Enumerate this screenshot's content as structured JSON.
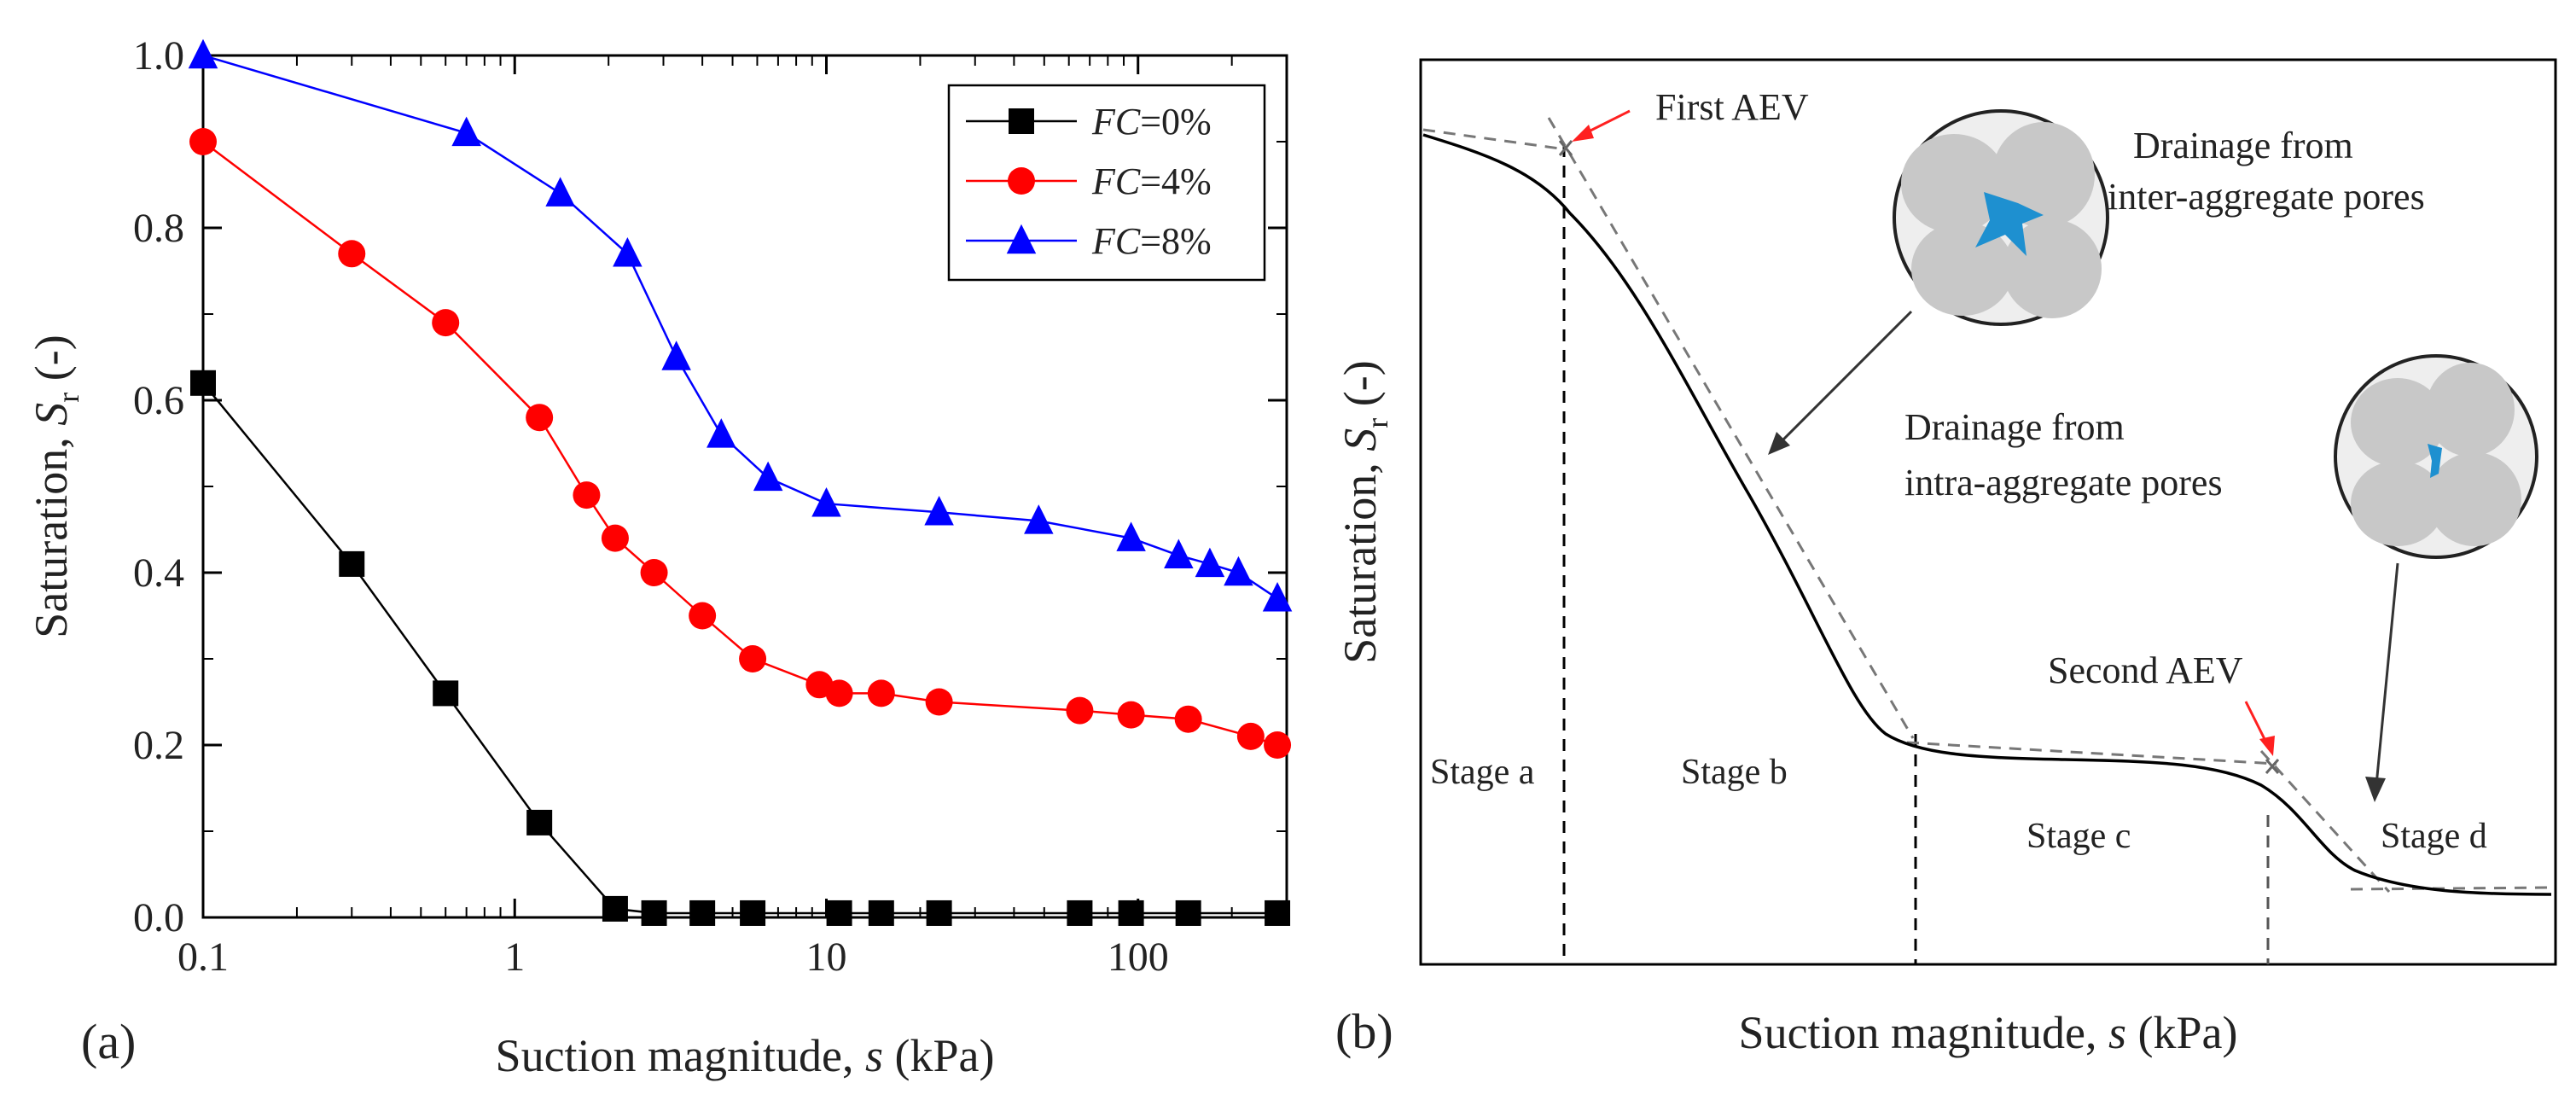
{
  "chart_data": [
    {
      "panel_label": "(a)",
      "type": "line",
      "xscale": "log",
      "xlim": [
        0.1,
        300
      ],
      "ylim": [
        0.0,
        1.0
      ],
      "xlabel_prefix": "Suction magnitude, ",
      "xlabel_var": "s",
      "xlabel_suffix": " (kPa)",
      "ylabel_prefix": "Saturation, ",
      "ylabel_var": "S",
      "ylabel_sub": "r",
      "ylabel_suffix": " (-)",
      "x_ticks": [
        0.1,
        1,
        10,
        100
      ],
      "x_tick_labels": [
        "0.1",
        "1",
        "10",
        "100"
      ],
      "y_ticks": [
        0.0,
        0.2,
        0.4,
        0.6,
        0.8,
        1.0
      ],
      "y_tick_labels": [
        "0.0",
        "0.2",
        "0.4",
        "0.6",
        "0.8",
        "1.0"
      ],
      "legend_position": "top-right",
      "series": [
        {
          "name": "FC=0%",
          "legend_var": "FC",
          "legend_val": "=0%",
          "color": "#000000",
          "marker": "square",
          "x": [
            0.1,
            0.3,
            0.6,
            1.2,
            2.1,
            2.8,
            4.0,
            5.8,
            11,
            15,
            23,
            65,
            95,
            145,
            280
          ],
          "y": [
            0.62,
            0.41,
            0.26,
            0.11,
            0.01,
            0.005,
            0.005,
            0.005,
            0.005,
            0.005,
            0.005,
            0.005,
            0.005,
            0.005,
            0.005
          ]
        },
        {
          "name": "FC=4%",
          "legend_var": "FC",
          "legend_val": "=4%",
          "color": "#ff0000",
          "marker": "circle",
          "x": [
            0.1,
            0.3,
            0.6,
            1.2,
            1.7,
            2.1,
            2.8,
            4.0,
            5.8,
            9.5,
            11,
            15,
            23,
            65,
            95,
            145,
            230,
            280
          ],
          "y": [
            0.9,
            0.77,
            0.69,
            0.58,
            0.49,
            0.44,
            0.4,
            0.35,
            0.3,
            0.27,
            0.26,
            0.26,
            0.25,
            0.24,
            0.235,
            0.23,
            0.21,
            0.2
          ]
        },
        {
          "name": "FC=8%",
          "legend_var": "FC",
          "legend_val": "=8%",
          "color": "#0000ff",
          "marker": "triangle",
          "x": [
            0.1,
            0.7,
            1.4,
            2.3,
            3.3,
            4.6,
            6.5,
            10,
            23,
            48,
            95,
            135,
            170,
            210,
            280
          ],
          "y": [
            1.0,
            0.91,
            0.84,
            0.77,
            0.65,
            0.56,
            0.51,
            0.48,
            0.47,
            0.46,
            0.44,
            0.42,
            0.41,
            0.4,
            0.37
          ]
        }
      ]
    },
    {
      "panel_label": "(b)",
      "type": "line",
      "description_free": true,
      "xlabel_prefix": "Suction magnitude, ",
      "xlabel_var": "s",
      "xlabel_suffix": " (kPa)",
      "ylabel_prefix": "Saturation, ",
      "ylabel_var": "S",
      "ylabel_sub": "r",
      "ylabel_suffix": " (-)",
      "annotations": {
        "first_aev": "First AEV",
        "second_aev": "Second AEV",
        "drainage_inter_line1": "Drainage from",
        "drainage_inter_line2": "inter-aggregate pores",
        "drainage_intra_line1": "Drainage from",
        "drainage_intra_line2": "intra-aggregate pores"
      },
      "stages": [
        "Stage a",
        "Stage b",
        "Stage c",
        "Stage d"
      ],
      "colors": {
        "curve": "#000000",
        "tangent": "#777777",
        "arrow_red": "#ff2020",
        "pore_water": "#1e90d0",
        "aggregate": "#c8c8c8",
        "circle_bg": "#eeeeee"
      }
    }
  ]
}
